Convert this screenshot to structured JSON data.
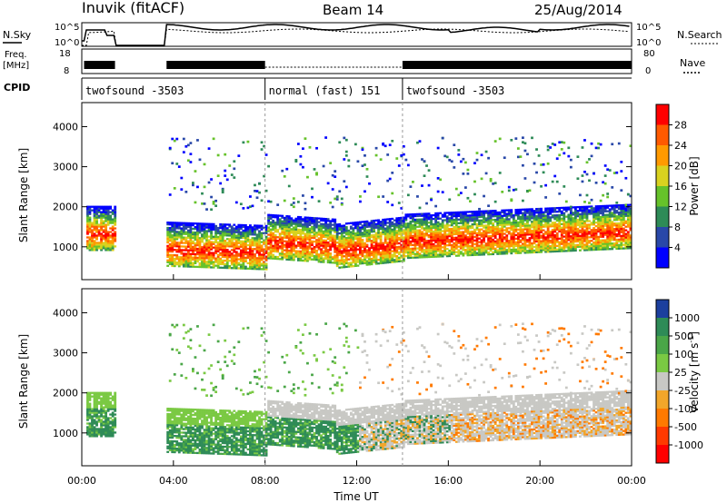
{
  "header": {
    "station": "Inuvik (fitACF)",
    "beam": "Beam 14",
    "date": "25/Aug/2014"
  },
  "panels": {
    "nsky": {
      "left_label": "N.Sky",
      "right_label": "N.Search",
      "left_ticks": [
        "10^5",
        "10^0"
      ],
      "right_ticks": [
        "10^5",
        "10^0"
      ]
    },
    "freq": {
      "left_label_1": "Freq.",
      "left_label_2": "[MHz]",
      "right_label": "Nave",
      "left_ticks": [
        "18",
        "8"
      ],
      "right_ticks": [
        "80",
        "0"
      ]
    },
    "cpid": {
      "label": "CPID",
      "segments": [
        {
          "label": "twofsound -3503",
          "start_hour": 0,
          "end_hour": 8
        },
        {
          "label": "normal (fast) 151",
          "start_hour": 8,
          "end_hour": 14
        },
        {
          "label": "twofsound -3503",
          "start_hour": 14,
          "end_hour": 24
        }
      ]
    }
  },
  "chart_data": [
    {
      "type": "heatmap",
      "name": "power",
      "ylabel": "Slant Range [km]",
      "xlabel": "",
      "ylim": [
        180,
        4600
      ],
      "xlim": [
        0,
        24
      ],
      "yticks": [
        "1000",
        "2000",
        "3000",
        "4000"
      ],
      "xticks": [
        "00:00",
        "04:00",
        "08:00",
        "12:00",
        "16:00",
        "20:00",
        "00:00"
      ],
      "colorbar": {
        "label": "Power [dB]",
        "ticks": [
          "4",
          "8",
          "12",
          "16",
          "20",
          "24",
          "28"
        ],
        "colors": [
          "#0000ff",
          "#2948a8",
          "#2e8b57",
          "#66c22a",
          "#d9d21f",
          "#ff9a00",
          "#ff5a00",
          "#ff0000"
        ]
      }
    },
    {
      "type": "heatmap",
      "name": "velocity",
      "ylabel": "Slant Range [km]",
      "xlabel": "Time UT",
      "ylim": [
        180,
        4600
      ],
      "xlim": [
        0,
        24
      ],
      "yticks": [
        "1000",
        "2000",
        "3000",
        "4000"
      ],
      "xticks": [
        "00:00",
        "04:00",
        "08:00",
        "12:00",
        "16:00",
        "20:00",
        "00:00"
      ],
      "colorbar": {
        "label": "Velocity [m s^-1]",
        "ticks": [
          "1000",
          "500",
          "100",
          "25",
          "-25",
          "-100",
          "-500",
          "-1000"
        ],
        "colors": [
          "#1c3f9e",
          "#2e8b57",
          "#4aa648",
          "#7ac943",
          "#c8c8c4",
          "#f2a62a",
          "#ff7a00",
          "#ff3a00",
          "#ff0000"
        ]
      }
    }
  ]
}
